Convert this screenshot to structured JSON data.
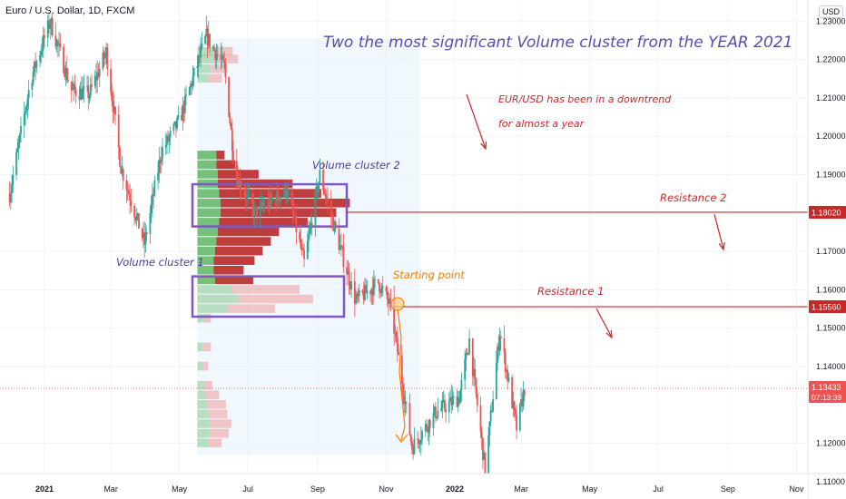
{
  "header": {
    "symbol": "Euro / U.S. Dollar, 1D, FXCM",
    "currency_button": "USD"
  },
  "chart_data": {
    "type": "candlestick",
    "title": "Two the most significant Volume cluster from the YEAR 2021",
    "y_ticks": [
      "1.23000",
      "1.22000",
      "1.21000",
      "1.20000",
      "1.19000",
      "1.17000",
      "1.16000",
      "1.15000",
      "1.14000",
      "1.12000",
      "1.11000"
    ],
    "ylim": [
      1.1055,
      1.2355
    ],
    "x_ticks": [
      "2021",
      "Mar",
      "May",
      "Jul",
      "Sep",
      "Nov",
      "2022",
      "Mar",
      "May",
      "Jul",
      "Sep",
      "Nov"
    ],
    "x_tick_dates": [
      "2021-01-01",
      "2021-03-01",
      "2021-05-01",
      "2021-07-01",
      "2021-09-01",
      "2021-11-01",
      "2022-01-01",
      "2022-03-01",
      "2022-05-01",
      "2022-07-01",
      "2022-09-01",
      "2022-11-01"
    ],
    "price_path": [
      {
        "date": "2020-12-01",
        "price": 1.185
      },
      {
        "date": "2020-12-20",
        "price": 1.215
      },
      {
        "date": "2021-01-06",
        "price": 1.23
      },
      {
        "date": "2021-01-25",
        "price": 1.212
      },
      {
        "date": "2021-02-10",
        "price": 1.211
      },
      {
        "date": "2021-02-25",
        "price": 1.222
      },
      {
        "date": "2021-03-10",
        "price": 1.192
      },
      {
        "date": "2021-03-31",
        "price": 1.172
      },
      {
        "date": "2021-04-15",
        "price": 1.196
      },
      {
        "date": "2021-05-01",
        "price": 1.204
      },
      {
        "date": "2021-05-25",
        "price": 1.226
      },
      {
        "date": "2021-06-10",
        "price": 1.218
      },
      {
        "date": "2021-06-20",
        "price": 1.19
      },
      {
        "date": "2021-07-07",
        "price": 1.18
      },
      {
        "date": "2021-08-05",
        "price": 1.186
      },
      {
        "date": "2021-08-20",
        "price": 1.167
      },
      {
        "date": "2021-09-03",
        "price": 1.19
      },
      {
        "date": "2021-09-20",
        "price": 1.172
      },
      {
        "date": "2021-10-05",
        "price": 1.157
      },
      {
        "date": "2021-10-25",
        "price": 1.162
      },
      {
        "date": "2021-11-05",
        "price": 1.1556
      },
      {
        "date": "2021-11-24",
        "price": 1.119
      },
      {
        "date": "2021-12-15",
        "price": 1.128
      },
      {
        "date": "2022-01-05",
        "price": 1.132
      },
      {
        "date": "2022-01-14",
        "price": 1.147
      },
      {
        "date": "2022-01-28",
        "price": 1.113
      },
      {
        "date": "2022-02-10",
        "price": 1.149
      },
      {
        "date": "2022-02-25",
        "price": 1.124
      },
      {
        "date": "2022-03-04",
        "price": 1.1343
      }
    ],
    "volume_profile_rows": [
      {
        "price": 1.222,
        "buy": 0.12,
        "sell": 0.14
      },
      {
        "price": 1.22,
        "buy": 0.12,
        "sell": 0.18
      },
      {
        "price": 1.2175,
        "buy": 0.1,
        "sell": 0.12
      },
      {
        "price": 1.215,
        "buy": 0.08,
        "sell": 0.1
      },
      {
        "price": 1.195,
        "buy": 0.14,
        "sell": 0.06
      },
      {
        "price": 1.1925,
        "buy": 0.14,
        "sell": 0.14
      },
      {
        "price": 1.19,
        "buy": 0.15,
        "sell": 0.3
      },
      {
        "price": 1.1875,
        "buy": 0.15,
        "sell": 0.55
      },
      {
        "price": 1.185,
        "buy": 0.16,
        "sell": 0.75
      },
      {
        "price": 1.1825,
        "buy": 0.17,
        "sell": 0.95
      },
      {
        "price": 1.18,
        "buy": 0.17,
        "sell": 0.85
      },
      {
        "price": 1.1775,
        "buy": 0.16,
        "sell": 0.65
      },
      {
        "price": 1.175,
        "buy": 0.15,
        "sell": 0.45
      },
      {
        "price": 1.1725,
        "buy": 0.14,
        "sell": 0.4
      },
      {
        "price": 1.17,
        "buy": 0.13,
        "sell": 0.35
      },
      {
        "price": 1.1675,
        "buy": 0.12,
        "sell": 0.3
      },
      {
        "price": 1.165,
        "buy": 0.12,
        "sell": 0.22
      },
      {
        "price": 1.1625,
        "buy": 0.13,
        "sell": 0.28
      },
      {
        "price": 1.16,
        "buy": 0.25,
        "sell": 0.5
      },
      {
        "price": 1.1575,
        "buy": 0.3,
        "sell": 0.55
      },
      {
        "price": 1.155,
        "buy": 0.22,
        "sell": 0.35
      },
      {
        "price": 1.1525,
        "buy": 0.05,
        "sell": 0.05
      },
      {
        "price": 1.145,
        "buy": 0.04,
        "sell": 0.06
      },
      {
        "price": 1.14,
        "buy": 0.04,
        "sell": 0.04
      },
      {
        "price": 1.135,
        "buy": 0.05,
        "sell": 0.06
      },
      {
        "price": 1.1325,
        "buy": 0.06,
        "sell": 0.1
      },
      {
        "price": 1.13,
        "buy": 0.07,
        "sell": 0.14
      },
      {
        "price": 1.1275,
        "buy": 0.08,
        "sell": 0.14
      },
      {
        "price": 1.125,
        "buy": 0.09,
        "sell": 0.16
      },
      {
        "price": 1.1225,
        "buy": 0.09,
        "sell": 0.14
      },
      {
        "price": 1.12,
        "buy": 0.08,
        "sell": 0.1
      }
    ],
    "levels": [
      {
        "label": "Resistance 2",
        "price": 1.1802,
        "tag": "1.18020"
      },
      {
        "label": "Resistance 1",
        "price": 1.1556,
        "tag": "1.15560"
      }
    ],
    "current_price": {
      "tag": "1.13433",
      "countdown": "07:13:39",
      "price": 1.13433
    },
    "annotations": {
      "cluster1": "Volume cluster 1",
      "cluster2": "Volume cluster 2",
      "starting_point": "Starting point",
      "downtrend_line1": "EUR/USD  has been in a downtrend",
      "downtrend_line2": "for almost a year"
    },
    "colors": {
      "up": "#26a69a",
      "down": "#ef5350",
      "profile_buy": "#4caf50",
      "profile_sell": "#b71c1c",
      "level": "#c62828",
      "box": "#7e57c2",
      "orange": "#f57c00",
      "price_tag": "#ef5350"
    }
  }
}
